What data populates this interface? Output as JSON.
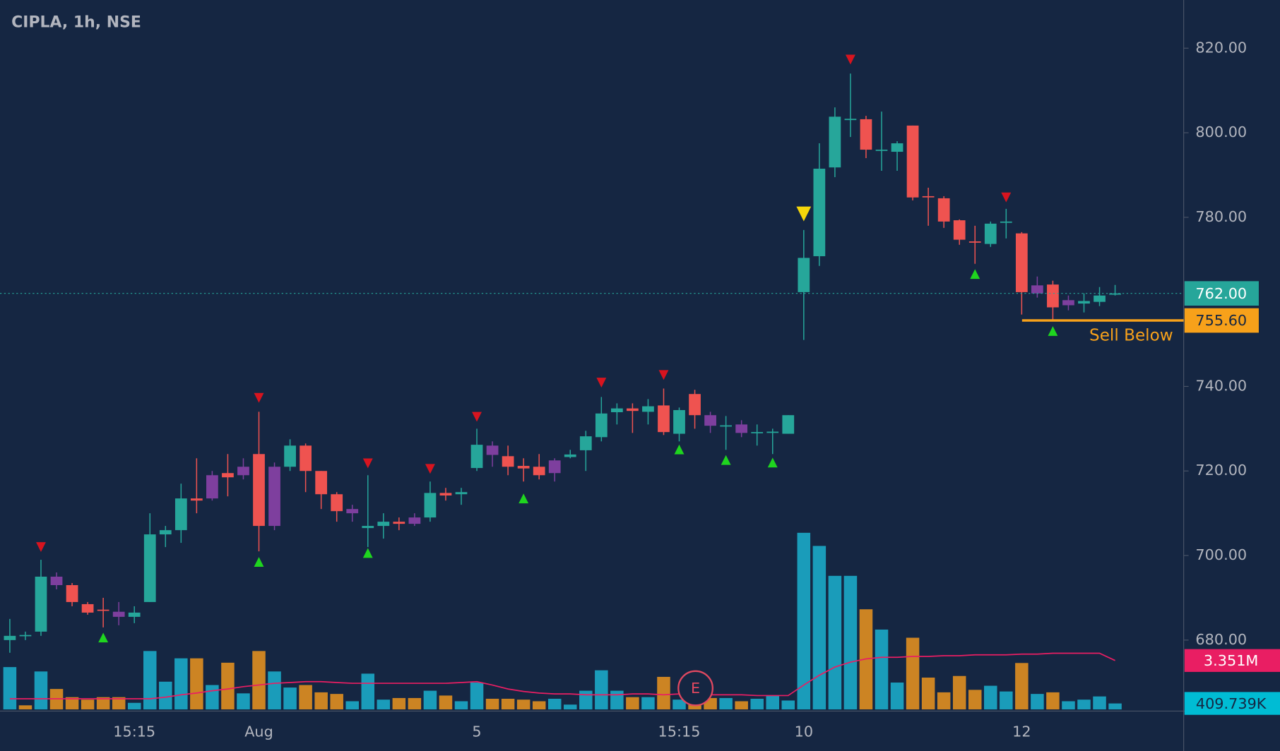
{
  "chart_data": {
    "type": "candlestick",
    "title": "CIPLA, 1h, NSE",
    "categories": [
      null,
      null,
      null,
      null,
      null,
      null,
      null,
      null,
      "15:15",
      null,
      null,
      null,
      null,
      null,
      null,
      null,
      "Aug",
      null,
      null,
      null,
      null,
      null,
      null,
      null,
      null,
      null,
      null,
      null,
      null,
      null,
      "5",
      null,
      null,
      null,
      null,
      null,
      null,
      null,
      null,
      null,
      null,
      null,
      null,
      "15:15",
      null,
      null,
      null,
      null,
      null,
      null,
      null,
      "10",
      null,
      null,
      null,
      null,
      null,
      null,
      null,
      null,
      null,
      null,
      null,
      null,
      null,
      "12",
      null,
      null,
      null,
      null,
      null,
      null
    ],
    "open": [
      680,
      681,
      682,
      695,
      693,
      688.5,
      687.2,
      686.7,
      685.5,
      689,
      705,
      706,
      713.5,
      719,
      719.5,
      721,
      724,
      721,
      721,
      726,
      720,
      714.5,
      711,
      706.5,
      707,
      708,
      709,
      709,
      714.8,
      714.5,
      720.7,
      726,
      723.5,
      721.2,
      721,
      722.5,
      723.3,
      724.9,
      728,
      733.9,
      734.8,
      734,
      735.5,
      728.8,
      738.2,
      733.2,
      730.5,
      731,
      729,
      729,
      728.8,
      762.3,
      770.8,
      791.8,
      803,
      803.2,
      795.8,
      795.5,
      801.7,
      785,
      784.5,
      779.3,
      774.3,
      773.7,
      778.7,
      776.2,
      763.9,
      764.1,
      760.4,
      759.6,
      760,
      761.7
    ],
    "high": [
      685,
      682,
      699,
      696,
      693.5,
      689,
      690,
      689,
      688,
      710,
      707,
      717,
      723,
      720,
      724,
      723,
      734,
      722,
      727.5,
      726.5,
      720,
      715,
      712,
      719,
      710,
      709,
      710,
      717.5,
      716,
      716,
      730,
      727,
      726,
      723,
      724,
      723,
      725,
      729.5,
      737.5,
      736,
      736,
      737,
      739.5,
      735,
      739.2,
      734,
      733,
      732,
      731,
      730,
      733.2,
      777,
      797.5,
      806,
      814,
      804,
      805,
      798,
      801.7,
      787,
      785,
      779.5,
      778,
      779,
      782,
      776.5,
      766,
      765,
      761.5,
      762,
      763.5,
      764
    ],
    "low": [
      677,
      680,
      681,
      692,
      688,
      686,
      683,
      683.5,
      684,
      689,
      702,
      703,
      710,
      713,
      714,
      718,
      701,
      706,
      720,
      715,
      711,
      708,
      708,
      702,
      704,
      706,
      707,
      708,
      713,
      712,
      720,
      721,
      719,
      717.5,
      718,
      717.5,
      723,
      720,
      727,
      731,
      729,
      731,
      728.5,
      727,
      730,
      729,
      725,
      728,
      726,
      724,
      728.8,
      751,
      768.5,
      789.5,
      799,
      794,
      791,
      791,
      784,
      778,
      777.5,
      773.5,
      769,
      773,
      775,
      757,
      761,
      755.6,
      758,
      757.5,
      759,
      761.5
    ],
    "close": [
      681,
      681.2,
      695,
      693,
      689,
      686.5,
      687,
      685.5,
      686.5,
      705,
      706,
      713.5,
      713,
      713.5,
      718.5,
      719,
      707,
      707,
      726,
      720,
      714.5,
      710.5,
      710,
      707,
      708,
      707.5,
      707.5,
      714.8,
      714.2,
      715,
      726.2,
      723.8,
      721,
      720.6,
      719,
      719.5,
      723.9,
      728.2,
      733.6,
      734.8,
      734.2,
      735.3,
      729.2,
      734.4,
      733.2,
      730.7,
      730.8,
      729,
      729.2,
      729.3,
      733.2,
      770.4,
      791.5,
      803.8,
      803.3,
      796,
      796,
      797.5,
      784.7,
      784.8,
      779,
      774.7,
      774,
      778.5,
      779,
      762.3,
      762,
      758.7,
      759.2,
      760.2,
      761.5,
      762
    ],
    "candle_colors": [
      "#26a69a",
      "#26a69a",
      "#26a69a",
      "#7e3f9e",
      "#ef5350",
      "#ef5350",
      "#ef5350",
      "#7e3f9e",
      "#26a69a",
      "#26a69a",
      "#26a69a",
      "#26a69a",
      "#ef5350",
      "#7e3f9e",
      "#ef5350",
      "#7e3f9e",
      "#ef5350",
      "#7e3f9e",
      "#26a69a",
      "#ef5350",
      "#ef5350",
      "#ef5350",
      "#7e3f9e",
      "#26a69a",
      "#26a69a",
      "#ef5350",
      "#7e3f9e",
      "#26a69a",
      "#ef5350",
      "#26a69a",
      "#26a69a",
      "#7e3f9e",
      "#ef5350",
      "#ef5350",
      "#ef5350",
      "#7e3f9e",
      "#26a69a",
      "#26a69a",
      "#26a69a",
      "#26a69a",
      "#ef5350",
      "#26a69a",
      "#ef5350",
      "#26a69a",
      "#ef5350",
      "#7e3f9e",
      "#26a69a",
      "#7e3f9e",
      "#26a69a",
      "#26a69a",
      "#26a69a",
      "#26a69a",
      "#26a69a",
      "#26a69a",
      "#26a69a",
      "#ef5350",
      "#26a69a",
      "#26a69a",
      "#ef5350",
      "#ef5350",
      "#ef5350",
      "#ef5350",
      "#ef5350",
      "#26a69a",
      "#26a69a",
      "#ef5350",
      "#7e3f9e",
      "#ef5350",
      "#7e3f9e",
      "#26a69a",
      "#26a69a",
      "#26a69a"
    ],
    "ylim": [
      663.6,
      831.4
    ],
    "yticks": [
      {
        "value": 680,
        "label": "680.00"
      },
      {
        "value": 700,
        "label": "700.00"
      },
      {
        "value": 720,
        "label": "720.00"
      },
      {
        "value": 740,
        "label": "740.00"
      },
      {
        "value": 780,
        "label": "780.00"
      },
      {
        "value": 800,
        "label": "800.00"
      },
      {
        "value": 820,
        "label": "820.00"
      }
    ],
    "volume": {
      "y2lim": [
        0,
        48600000
      ],
      "values": [
        2900000,
        280000,
        2600000,
        1400000,
        840000,
        670000,
        840000,
        840000,
        450000,
        4000000,
        1900000,
        3500000,
        3500000,
        1670000,
        3200000,
        1100000,
        4000000,
        2600000,
        1500000,
        1670000,
        1170000,
        1060000,
        560000,
        2450000,
        670000,
        780000,
        780000,
        1280000,
        950000,
        560000,
        1840000,
        730000,
        730000,
        670000,
        560000,
        730000,
        330000,
        1280000,
        2680000,
        1280000,
        840000,
        840000,
        2230000,
        670000,
        1100000,
        780000,
        780000,
        560000,
        730000,
        950000,
        610000,
        12100000,
        11200000,
        9150000,
        9150000,
        6860000,
        5470000,
        1840000,
        4910000,
        2180000,
        1170000,
        2290000,
        1340000,
        1620000,
        1230000,
        3180000,
        1060000,
        1170000,
        560000,
        670000,
        890000,
        409739
      ],
      "colors": [
        "#1a9cba",
        "#cc8423",
        "#1a9cba",
        "#cc8423",
        "#cc8423",
        "#cc8423",
        "#cc8423",
        "#cc8423",
        "#1a9cba",
        "#1a9cba",
        "#1a9cba",
        "#1a9cba",
        "#cc8423",
        "#1a9cba",
        "#cc8423",
        "#1a9cba",
        "#cc8423",
        "#1a9cba",
        "#1a9cba",
        "#cc8423",
        "#cc8423",
        "#cc8423",
        "#1a9cba",
        "#1a9cba",
        "#1a9cba",
        "#cc8423",
        "#cc8423",
        "#1a9cba",
        "#cc8423",
        "#1a9cba",
        "#1a9cba",
        "#cc8423",
        "#cc8423",
        "#cc8423",
        "#cc8423",
        "#1a9cba",
        "#1a9cba",
        "#1a9cba",
        "#1a9cba",
        "#1a9cba",
        "#cc8423",
        "#1a9cba",
        "#cc8423",
        "#1a9cba",
        "#cc8423",
        "#cc8423",
        "#1a9cba",
        "#cc8423",
        "#1a9cba",
        "#1a9cba",
        "#1a9cba",
        "#1a9cba",
        "#1a9cba",
        "#1a9cba",
        "#1a9cba",
        "#cc8423",
        "#1a9cba",
        "#1a9cba",
        "#cc8423",
        "#cc8423",
        "#cc8423",
        "#cc8423",
        "#cc8423",
        "#1a9cba",
        "#1a9cba",
        "#cc8423",
        "#1a9cba",
        "#cc8423",
        "#1a9cba",
        "#1a9cba",
        "#1a9cba",
        "#1a9cba"
      ],
      "ma": {
        "color": "#e91e63",
        "values": [
          730000,
          730000,
          730000,
          730000,
          730000,
          730000,
          730000,
          730000,
          730000,
          730000,
          840000,
          1000000,
          1120000,
          1280000,
          1400000,
          1560000,
          1670000,
          1790000,
          1840000,
          1900000,
          1900000,
          1840000,
          1790000,
          1790000,
          1790000,
          1790000,
          1790000,
          1790000,
          1790000,
          1840000,
          1900000,
          1670000,
          1400000,
          1230000,
          1120000,
          1060000,
          1060000,
          1000000,
          1000000,
          1000000,
          1060000,
          1060000,
          1000000,
          1060000,
          1000000,
          1000000,
          1000000,
          1000000,
          950000,
          950000,
          950000,
          1670000,
          2340000,
          2900000,
          3240000,
          3460000,
          3570000,
          3570000,
          3630000,
          3630000,
          3680000,
          3680000,
          3740000,
          3740000,
          3740000,
          3790000,
          3790000,
          3850000,
          3850000,
          3850000,
          3850000,
          3351000
        ]
      },
      "tags": [
        {
          "value": 3351000,
          "label": "3.351M",
          "color": "#e91e63"
        },
        {
          "value": 409739,
          "label": "409.739K",
          "color": "#00bcd4"
        }
      ]
    },
    "buy_signals": {
      "color": "#1fd51f",
      "values": [
        null,
        null,
        null,
        null,
        null,
        null,
        680.6,
        null,
        null,
        null,
        null,
        null,
        null,
        null,
        null,
        null,
        698.5,
        null,
        null,
        null,
        null,
        null,
        null,
        700.6,
        null,
        null,
        null,
        null,
        null,
        null,
        null,
        null,
        null,
        713.5,
        null,
        null,
        null,
        null,
        null,
        null,
        null,
        null,
        null,
        725.1,
        null,
        null,
        722.6,
        null,
        null,
        722,
        null,
        null,
        null,
        null,
        null,
        null,
        null,
        null,
        null,
        null,
        null,
        null,
        766.6,
        null,
        null,
        null,
        null,
        753.1,
        null,
        null,
        null,
        null
      ]
    },
    "sell_signals": {
      "color": "#d7141f",
      "values": [
        null,
        null,
        702,
        null,
        null,
        null,
        null,
        null,
        null,
        null,
        null,
        null,
        null,
        null,
        null,
        null,
        737.3,
        null,
        null,
        null,
        null,
        null,
        null,
        721.8,
        null,
        null,
        null,
        720.5,
        null,
        null,
        732.8,
        null,
        null,
        null,
        null,
        null,
        null,
        null,
        740.9,
        null,
        null,
        null,
        742.7,
        null,
        null,
        null,
        null,
        null,
        null,
        null,
        null,
        null,
        null,
        null,
        817.3,
        null,
        null,
        null,
        null,
        null,
        null,
        null,
        null,
        null,
        784.7,
        null,
        null,
        null,
        null,
        null,
        null,
        null
      ]
    },
    "alert_signals": {
      "color": "#f5d60a",
      "values": [
        null,
        null,
        null,
        null,
        null,
        null,
        null,
        null,
        null,
        null,
        null,
        null,
        null,
        null,
        null,
        null,
        null,
        null,
        null,
        null,
        null,
        null,
        null,
        null,
        null,
        null,
        null,
        null,
        null,
        null,
        null,
        null,
        null,
        null,
        null,
        null,
        null,
        null,
        null,
        null,
        null,
        null,
        null,
        null,
        null,
        null,
        null,
        null,
        null,
        null,
        null,
        780.8,
        null,
        null,
        null,
        null,
        null,
        null,
        null,
        null,
        null,
        null,
        null,
        null,
        null,
        null,
        null,
        null,
        null,
        null,
        null,
        null
      ]
    },
    "last_price": {
      "value": 762,
      "label": "762.00",
      "color": "#26a69a"
    },
    "level": {
      "value": 755.6,
      "label": "755.60",
      "text": "Sell Below",
      "color": "#f7a11a"
    },
    "event": "E"
  }
}
